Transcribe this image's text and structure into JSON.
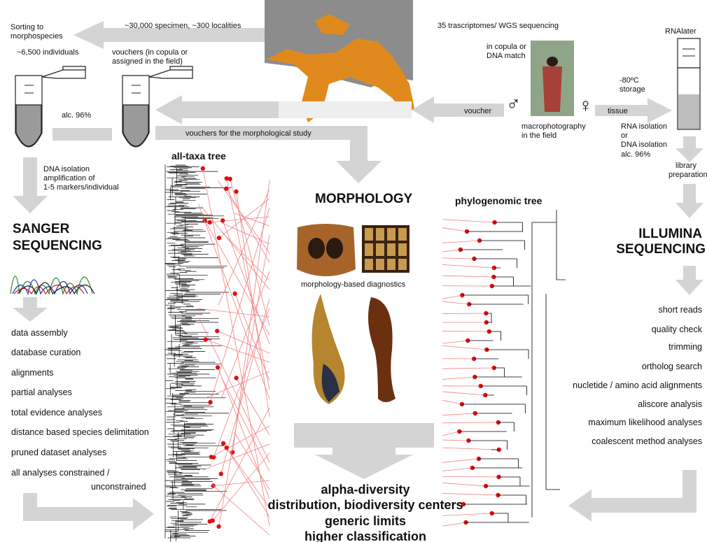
{
  "collection": {
    "sorting": [
      "Sorting to",
      "morphospecies"
    ],
    "specimens": "~30,000 specimen, ~300 localities",
    "individuals": "~6,500 individuals",
    "vouchers": [
      "vouchers (in copula or",
      "assigned in the field)"
    ],
    "alcohol": "alc. 96%",
    "transcriptomes": "35 trascriptomes/ WGS sequencing",
    "copula": [
      "in copula or",
      "DNA match"
    ],
    "rnalater": "RNAlater",
    "storage": [
      "-80ºC",
      "storage"
    ],
    "voucher": "voucher",
    "tissue": "tissue",
    "male": "♂",
    "female": "♀",
    "photo": [
      "macrophotography",
      "in the field"
    ],
    "isolation": [
      "RNA isolation",
      "or",
      "DNA isolation",
      "alc. 96%"
    ],
    "morph_vouchers": "vouchers for the morphological study"
  },
  "sanger": {
    "dna": [
      "DNA isolation",
      "amplification of",
      "1-5 markers/individual"
    ],
    "title": [
      "SANGER",
      "SEQUENCING"
    ],
    "steps": [
      "data assembly",
      "database curation",
      "alignments",
      "partial analyses",
      "total evidence analyses",
      "distance based species delimitation",
      "pruned dataset analyses",
      "all analyses constrained /"
    ],
    "steps_tail": "unconstrained"
  },
  "trees": {
    "all_taxa": "all-taxa tree",
    "phylogenomic": "phylogenomic tree"
  },
  "morphology": {
    "title": "MORPHOLOGY",
    "caption": "morphology-based diagnostics"
  },
  "illumina": {
    "library": [
      "library",
      "preparation"
    ],
    "title": [
      "ILLUMINA",
      "SEQUENCING"
    ],
    "steps": [
      "short reads",
      "quality check",
      "trimming",
      "ortholog search",
      "nucletide / amino acid alignments",
      "aliscore analysis",
      "maximum likelihood analyses",
      "coalescent method analyses"
    ]
  },
  "outcomes": [
    "alpha-diversity",
    "distribution, biodiversity centers",
    "generic limits",
    "higher classification"
  ]
}
